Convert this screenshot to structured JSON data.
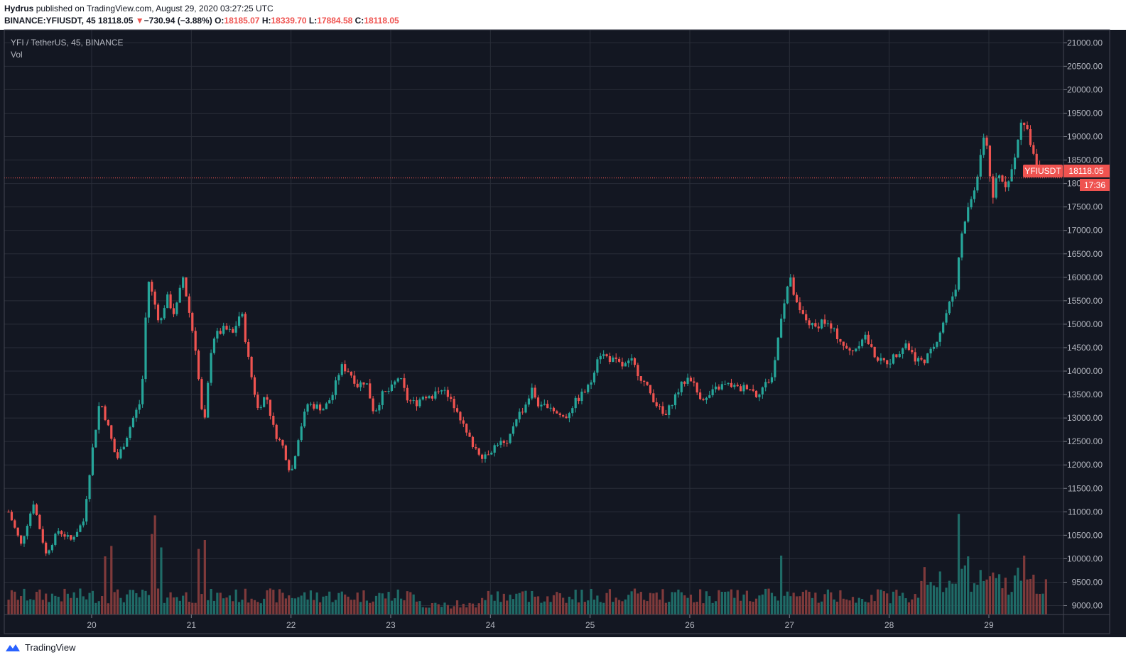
{
  "header": {
    "publisher": "Hydrus",
    "published_text": "published on TradingView.com, August 29, 2020 03:27:25 UTC",
    "symbol_full": "BINANCE:YFIUSDT, 45",
    "last": "18118.05",
    "change_arrow": "▼",
    "change": "−730.94 (−3.88%)",
    "o_label": "O:",
    "o_value": "18185.07",
    "h_label": "H:",
    "h_value": "18339.70",
    "l_label": "L:",
    "l_value": "17884.58",
    "c_label": "C:",
    "c_value": "18118.05"
  },
  "legend": {
    "title": "YFI / TetherUS, 45, BINANCE",
    "volume": "Vol"
  },
  "price_tag": {
    "symbol": "YFIUSDT",
    "price": "18118.05",
    "countdown": "17:36"
  },
  "footer": {
    "logo_text": "TradingView"
  },
  "colors": {
    "background": "#131722",
    "grid": "#2a2e39",
    "up": "#26a69a",
    "down": "#ef5350",
    "up_volume": "#1f6b67",
    "down_volume": "#7f3a3b",
    "text": "#b2b5be",
    "last_price": "#ef5350"
  },
  "chart_data": {
    "type": "candlestick",
    "title": "YFI / TetherUS, 45, BINANCE",
    "interval_minutes": 45,
    "ylim": [
      8700,
      21000
    ],
    "y_ticks": [
      9000,
      9500,
      10000,
      10500,
      11000,
      11500,
      12000,
      12500,
      13000,
      13500,
      14000,
      14500,
      15000,
      15500,
      16000,
      16500,
      17000,
      17500,
      18000,
      18500,
      19000,
      19500,
      20000,
      20500,
      21000
    ],
    "x_ticks": [
      "20",
      "21",
      "22",
      "23",
      "24",
      "25",
      "26",
      "27",
      "28",
      "29"
    ],
    "grid": true,
    "last_price": 18118.05,
    "anchor_closes": [
      [
        "2020-08-19 04:00",
        11000
      ],
      [
        "2020-08-19 07:00",
        10300
      ],
      [
        "2020-08-19 10:00",
        11200
      ],
      [
        "2020-08-19 13:00",
        10100
      ],
      [
        "2020-08-19 16:00",
        10600
      ],
      [
        "2020-08-19 19:00",
        10400
      ],
      [
        "2020-08-19 22:00",
        10800
      ],
      [
        "2020-08-20 00:00",
        12200
      ],
      [
        "2020-08-20 02:00",
        13400
      ],
      [
        "2020-08-20 04:00",
        12800
      ],
      [
        "2020-08-20 06:00",
        12100
      ],
      [
        "2020-08-20 08:00",
        12500
      ],
      [
        "2020-08-20 10:00",
        13000
      ],
      [
        "2020-08-20 12:00",
        13400
      ],
      [
        "2020-08-20 13:30",
        16000
      ],
      [
        "2020-08-20 15:00",
        15500
      ],
      [
        "2020-08-20 16:30",
        15000
      ],
      [
        "2020-08-20 18:00",
        15600
      ],
      [
        "2020-08-20 20:00",
        15200
      ],
      [
        "2020-08-20 22:00",
        16000
      ],
      [
        "2020-08-21 01:00",
        14500
      ],
      [
        "2020-08-21 03:00",
        12700
      ],
      [
        "2020-08-21 05:00",
        14700
      ],
      [
        "2020-08-21 08:00",
        14900
      ],
      [
        "2020-08-21 10:00",
        14800
      ],
      [
        "2020-08-21 12:00",
        15300
      ],
      [
        "2020-08-21 14:00",
        14100
      ],
      [
        "2020-08-21 16:00",
        13200
      ],
      [
        "2020-08-21 18:00",
        13500
      ],
      [
        "2020-08-21 20:00",
        12700
      ],
      [
        "2020-08-21 22:00",
        12400
      ],
      [
        "2020-08-22 00:00",
        11800
      ],
      [
        "2020-08-22 02:00",
        12700
      ],
      [
        "2020-08-22 04:00",
        13300
      ],
      [
        "2020-08-22 08:00",
        13200
      ],
      [
        "2020-08-22 10:00",
        13500
      ],
      [
        "2020-08-22 12:00",
        14100
      ],
      [
        "2020-08-22 14:00",
        14000
      ],
      [
        "2020-08-22 16:00",
        13700
      ],
      [
        "2020-08-22 18:00",
        13800
      ],
      [
        "2020-08-22 20:00",
        13100
      ],
      [
        "2020-08-22 22:00",
        13500
      ],
      [
        "2020-08-23 00:00",
        13600
      ],
      [
        "2020-08-23 02:00",
        13900
      ],
      [
        "2020-08-23 04:00",
        13400
      ],
      [
        "2020-08-23 06:00",
        13300
      ],
      [
        "2020-08-23 08:00",
        13500
      ],
      [
        "2020-08-23 10:00",
        13400
      ],
      [
        "2020-08-23 12:00",
        13700
      ],
      [
        "2020-08-23 14:00",
        13400
      ],
      [
        "2020-08-23 16:00",
        13200
      ],
      [
        "2020-08-23 18:00",
        12700
      ],
      [
        "2020-08-23 20:00",
        12400
      ],
      [
        "2020-08-23 22:00",
        12200
      ],
      [
        "2020-08-24 00:00",
        12300
      ],
      [
        "2020-08-24 02:00",
        12500
      ],
      [
        "2020-08-24 04:00",
        12400
      ],
      [
        "2020-08-24 06:00",
        13000
      ],
      [
        "2020-08-24 08:00",
        13200
      ],
      [
        "2020-08-24 10:00",
        13600
      ],
      [
        "2020-08-24 12:00",
        13200
      ],
      [
        "2020-08-24 14:00",
        13300
      ],
      [
        "2020-08-24 16:00",
        13100
      ],
      [
        "2020-08-24 18:00",
        13000
      ],
      [
        "2020-08-24 20:00",
        13300
      ],
      [
        "2020-08-24 22:00",
        13500
      ],
      [
        "2020-08-25 00:00",
        13700
      ],
      [
        "2020-08-25 02:00",
        14400
      ],
      [
        "2020-08-25 04:00",
        14300
      ],
      [
        "2020-08-25 06:00",
        14200
      ],
      [
        "2020-08-25 08:00",
        14100
      ],
      [
        "2020-08-25 10:00",
        14200
      ],
      [
        "2020-08-25 12:00",
        13900
      ],
      [
        "2020-08-25 14:00",
        13600
      ],
      [
        "2020-08-25 16:00",
        13300
      ],
      [
        "2020-08-25 18:00",
        13000
      ],
      [
        "2020-08-25 20:00",
        13400
      ],
      [
        "2020-08-25 22:00",
        13700
      ],
      [
        "2020-08-26 00:00",
        13900
      ],
      [
        "2020-08-26 02:00",
        13500
      ],
      [
        "2020-08-26 04:00",
        13400
      ],
      [
        "2020-08-26 06:00",
        13600
      ],
      [
        "2020-08-26 08:00",
        13700
      ],
      [
        "2020-08-26 10:00",
        13700
      ],
      [
        "2020-08-26 12:00",
        13600
      ],
      [
        "2020-08-26 14:00",
        13700
      ],
      [
        "2020-08-26 16:00",
        13500
      ],
      [
        "2020-08-26 18:00",
        13700
      ],
      [
        "2020-08-26 20:00",
        13900
      ],
      [
        "2020-08-26 22:00",
        15200
      ],
      [
        "2020-08-27 00:00",
        16000
      ],
      [
        "2020-08-27 02:00",
        15300
      ],
      [
        "2020-08-27 04:00",
        15100
      ],
      [
        "2020-08-27 06:00",
        14900
      ],
      [
        "2020-08-27 08:00",
        15100
      ],
      [
        "2020-08-27 10:00",
        14900
      ],
      [
        "2020-08-27 12:00",
        14700
      ],
      [
        "2020-08-27 14:00",
        14400
      ],
      [
        "2020-08-27 16:00",
        14500
      ],
      [
        "2020-08-27 18:00",
        14800
      ],
      [
        "2020-08-27 20:00",
        14400
      ],
      [
        "2020-08-27 22:00",
        14200
      ],
      [
        "2020-08-28 00:00",
        14200
      ],
      [
        "2020-08-28 02:00",
        14400
      ],
      [
        "2020-08-28 04:00",
        14600
      ],
      [
        "2020-08-28 06:00",
        14300
      ],
      [
        "2020-08-28 08:00",
        14200
      ],
      [
        "2020-08-28 10:00",
        14400
      ],
      [
        "2020-08-28 12:00",
        14800
      ],
      [
        "2020-08-28 14:00",
        15300
      ],
      [
        "2020-08-28 16:00",
        15800
      ],
      [
        "2020-08-28 17:00",
        16600
      ],
      [
        "2020-08-28 18:00",
        17200
      ],
      [
        "2020-08-28 20:00",
        17700
      ],
      [
        "2020-08-28 22:00",
        18500
      ],
      [
        "2020-08-28 23:00",
        19200
      ],
      [
        "2020-08-29 00:00",
        18400
      ],
      [
        "2020-08-29 01:00",
        17600
      ],
      [
        "2020-08-29 02:00",
        18200
      ],
      [
        "2020-08-29 04:00",
        18000
      ],
      [
        "2020-08-29 06:00",
        18400
      ],
      [
        "2020-08-29 08:00",
        19400
      ],
      [
        "2020-08-29 10:00",
        18900
      ],
      [
        "2020-08-29 12:00",
        18300
      ],
      [
        "2020-08-29 14:00",
        18118.05
      ]
    ],
    "volume_spikes": [
      [
        "2020-08-20 03:00",
        780
      ],
      [
        "2020-08-20 05:00",
        920
      ],
      [
        "2020-08-20 14:30",
        1080
      ],
      [
        "2020-08-20 15:30",
        1330
      ],
      [
        "2020-08-20 17:00",
        900
      ],
      [
        "2020-08-21 02:00",
        880
      ],
      [
        "2020-08-21 03:30",
        1000
      ],
      [
        "2020-08-26 22:00",
        790
      ],
      [
        "2020-08-28 16:30",
        1350
      ],
      [
        "2020-08-28 19:00",
        780
      ],
      [
        "2020-08-29 08:30",
        790
      ]
    ]
  }
}
